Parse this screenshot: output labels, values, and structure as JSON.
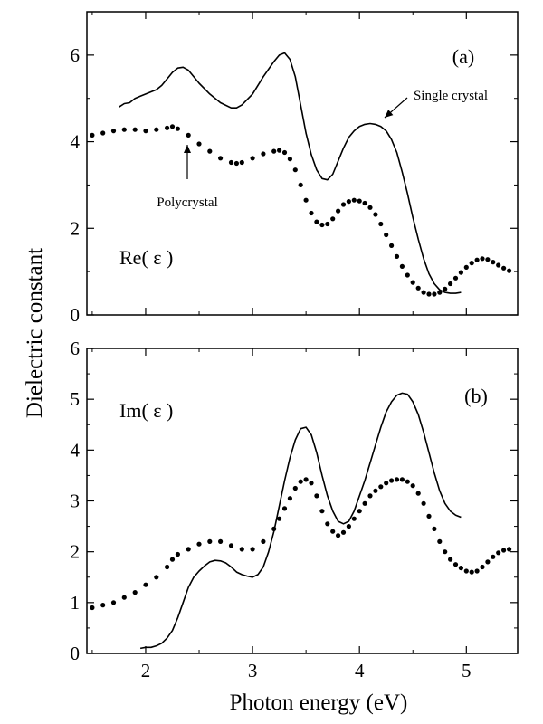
{
  "figure": {
    "ylabel": "Dielectric constant",
    "xlabel": "Photon energy (eV)"
  },
  "chart_data": [
    {
      "type": "line",
      "panel_label": "(a)",
      "quantity_label": "Re( ε )",
      "xlim": [
        1.45,
        5.48
      ],
      "ylim": [
        0,
        7
      ],
      "xticks": [
        2,
        3,
        4,
        5
      ],
      "yticks": [
        0,
        2,
        4,
        6
      ],
      "grid": false,
      "annotations": [
        {
          "text": "Single crystal",
          "target_series": 0
        },
        {
          "text": "Polycrystal",
          "target_series": 1
        }
      ],
      "series": [
        {
          "name": "Single crystal",
          "style": "solid",
          "color": "#000000",
          "x": [
            1.75,
            1.8,
            1.85,
            1.9,
            1.95,
            2.0,
            2.05,
            2.1,
            2.15,
            2.2,
            2.25,
            2.3,
            2.35,
            2.4,
            2.45,
            2.5,
            2.6,
            2.7,
            2.8,
            2.85,
            2.9,
            3.0,
            3.1,
            3.2,
            3.25,
            3.3,
            3.35,
            3.4,
            3.45,
            3.5,
            3.55,
            3.6,
            3.65,
            3.7,
            3.75,
            3.8,
            3.85,
            3.9,
            3.95,
            4.0,
            4.05,
            4.1,
            4.15,
            4.2,
            4.25,
            4.3,
            4.35,
            4.4,
            4.45,
            4.5,
            4.55,
            4.6,
            4.65,
            4.7,
            4.75,
            4.8,
            4.85,
            4.9,
            4.95
          ],
          "y": [
            4.8,
            4.88,
            4.9,
            5.0,
            5.05,
            5.1,
            5.15,
            5.2,
            5.3,
            5.45,
            5.6,
            5.7,
            5.72,
            5.65,
            5.5,
            5.35,
            5.1,
            4.9,
            4.78,
            4.78,
            4.85,
            5.1,
            5.5,
            5.85,
            6.0,
            6.05,
            5.9,
            5.5,
            4.85,
            4.2,
            3.7,
            3.35,
            3.15,
            3.12,
            3.25,
            3.55,
            3.85,
            4.1,
            4.25,
            4.35,
            4.4,
            4.42,
            4.4,
            4.35,
            4.25,
            4.05,
            3.75,
            3.3,
            2.8,
            2.25,
            1.75,
            1.3,
            0.95,
            0.72,
            0.58,
            0.52,
            0.5,
            0.5,
            0.52
          ]
        },
        {
          "name": "Polycrystal",
          "style": "dotted",
          "color": "#000000",
          "x": [
            1.5,
            1.6,
            1.7,
            1.8,
            1.9,
            2.0,
            2.1,
            2.2,
            2.25,
            2.3,
            2.4,
            2.5,
            2.6,
            2.7,
            2.8,
            2.85,
            2.9,
            3.0,
            3.1,
            3.2,
            3.25,
            3.3,
            3.35,
            3.4,
            3.45,
            3.5,
            3.55,
            3.6,
            3.65,
            3.7,
            3.75,
            3.8,
            3.85,
            3.9,
            3.95,
            4.0,
            4.05,
            4.1,
            4.15,
            4.2,
            4.25,
            4.3,
            4.35,
            4.4,
            4.45,
            4.5,
            4.55,
            4.6,
            4.65,
            4.7,
            4.75,
            4.8,
            4.85,
            4.9,
            4.95,
            5.0,
            5.05,
            5.1,
            5.15,
            5.2,
            5.25,
            5.3,
            5.35,
            5.4
          ],
          "y": [
            4.15,
            4.2,
            4.25,
            4.28,
            4.28,
            4.25,
            4.28,
            4.32,
            4.35,
            4.3,
            4.15,
            3.95,
            3.78,
            3.62,
            3.52,
            3.5,
            3.52,
            3.62,
            3.72,
            3.78,
            3.8,
            3.75,
            3.6,
            3.35,
            3.0,
            2.65,
            2.35,
            2.15,
            2.08,
            2.1,
            2.22,
            2.4,
            2.55,
            2.62,
            2.65,
            2.63,
            2.58,
            2.48,
            2.32,
            2.1,
            1.85,
            1.6,
            1.35,
            1.12,
            0.92,
            0.75,
            0.62,
            0.52,
            0.48,
            0.48,
            0.52,
            0.6,
            0.72,
            0.85,
            0.98,
            1.1,
            1.2,
            1.27,
            1.3,
            1.28,
            1.22,
            1.15,
            1.08,
            1.02
          ]
        }
      ]
    },
    {
      "type": "line",
      "panel_label": "(b)",
      "quantity_label": "Im( ε )",
      "xlim": [
        1.45,
        5.48
      ],
      "ylim": [
        0,
        6
      ],
      "xticks": [
        2,
        3,
        4,
        5
      ],
      "xtick_labels": [
        "2",
        "3",
        "4",
        "5"
      ],
      "yticks": [
        0,
        1,
        2,
        3,
        4,
        5,
        6
      ],
      "grid": false,
      "series": [
        {
          "style": "solid",
          "color": "#000000",
          "x": [
            1.95,
            2.0,
            2.05,
            2.1,
            2.15,
            2.2,
            2.25,
            2.3,
            2.35,
            2.4,
            2.45,
            2.5,
            2.55,
            2.6,
            2.65,
            2.7,
            2.75,
            2.8,
            2.85,
            2.9,
            2.95,
            3.0,
            3.05,
            3.1,
            3.15,
            3.2,
            3.25,
            3.3,
            3.35,
            3.4,
            3.45,
            3.5,
            3.55,
            3.6,
            3.65,
            3.7,
            3.75,
            3.8,
            3.85,
            3.9,
            3.95,
            4.0,
            4.05,
            4.1,
            4.15,
            4.2,
            4.25,
            4.3,
            4.35,
            4.4,
            4.45,
            4.5,
            4.55,
            4.6,
            4.65,
            4.7,
            4.75,
            4.8,
            4.85,
            4.9,
            4.95
          ],
          "y": [
            0.1,
            0.12,
            0.12,
            0.15,
            0.2,
            0.3,
            0.45,
            0.7,
            1.0,
            1.3,
            1.5,
            1.62,
            1.72,
            1.8,
            1.83,
            1.82,
            1.78,
            1.7,
            1.6,
            1.55,
            1.52,
            1.5,
            1.55,
            1.7,
            2.0,
            2.4,
            2.9,
            3.4,
            3.85,
            4.2,
            4.42,
            4.45,
            4.3,
            3.95,
            3.5,
            3.1,
            2.8,
            2.6,
            2.55,
            2.6,
            2.8,
            3.1,
            3.4,
            3.75,
            4.1,
            4.45,
            4.75,
            4.95,
            5.08,
            5.12,
            5.1,
            4.95,
            4.7,
            4.35,
            3.95,
            3.55,
            3.2,
            2.95,
            2.8,
            2.72,
            2.68
          ]
        },
        {
          "style": "dotted",
          "color": "#000000",
          "x": [
            1.5,
            1.6,
            1.7,
            1.8,
            1.9,
            2.0,
            2.1,
            2.2,
            2.25,
            2.3,
            2.4,
            2.5,
            2.6,
            2.7,
            2.8,
            2.9,
            3.0,
            3.1,
            3.2,
            3.25,
            3.3,
            3.35,
            3.4,
            3.45,
            3.5,
            3.55,
            3.6,
            3.65,
            3.7,
            3.75,
            3.8,
            3.85,
            3.9,
            3.95,
            4.0,
            4.05,
            4.1,
            4.15,
            4.2,
            4.25,
            4.3,
            4.35,
            4.4,
            4.45,
            4.5,
            4.55,
            4.6,
            4.65,
            4.7,
            4.75,
            4.8,
            4.85,
            4.9,
            4.95,
            5.0,
            5.05,
            5.1,
            5.15,
            5.2,
            5.25,
            5.3,
            5.35,
            5.4
          ],
          "y": [
            0.9,
            0.95,
            1.0,
            1.1,
            1.2,
            1.35,
            1.5,
            1.7,
            1.85,
            1.95,
            2.05,
            2.15,
            2.2,
            2.2,
            2.12,
            2.05,
            2.05,
            2.2,
            2.45,
            2.65,
            2.85,
            3.05,
            3.25,
            3.38,
            3.42,
            3.35,
            3.1,
            2.8,
            2.55,
            2.4,
            2.32,
            2.38,
            2.5,
            2.65,
            2.8,
            2.95,
            3.1,
            3.2,
            3.28,
            3.35,
            3.4,
            3.42,
            3.42,
            3.38,
            3.3,
            3.15,
            2.95,
            2.7,
            2.45,
            2.2,
            2.0,
            1.85,
            1.75,
            1.68,
            1.62,
            1.6,
            1.62,
            1.7,
            1.8,
            1.9,
            1.98,
            2.03,
            2.05
          ]
        }
      ]
    }
  ]
}
